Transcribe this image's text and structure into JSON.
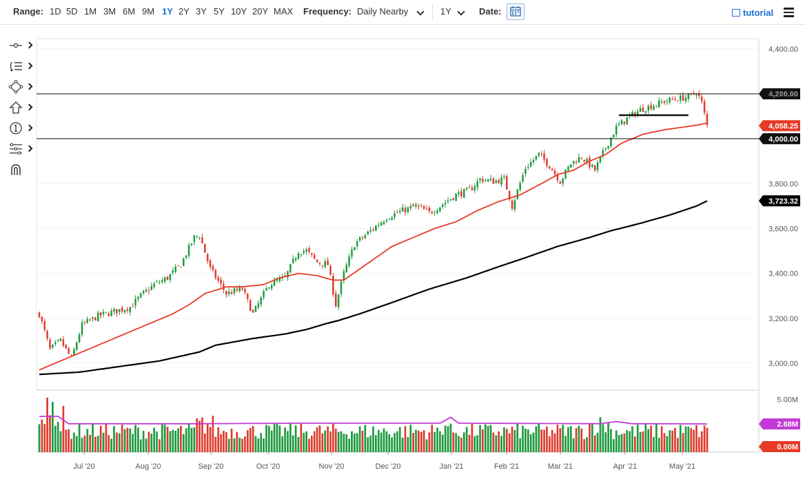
{
  "toolbar": {
    "range_label": "Range:",
    "ranges": [
      "1D",
      "5D",
      "1M",
      "3M",
      "6M",
      "9M",
      "1Y",
      "2Y",
      "3Y",
      "5Y",
      "10Y",
      "20Y",
      "MAX"
    ],
    "active_range": "1Y",
    "frequency_label": "Frequency:",
    "frequency_value": "Daily Nearby",
    "period_value": "1Y",
    "date_label": "Date:",
    "tutorial_label": "tutorial",
    "icons": {
      "date": "calendar-icon",
      "tutorial": "film-icon",
      "menu": "hamburger-menu-icon"
    }
  },
  "drawing_tools": [
    "crosshair-line-icon",
    "fibonacci-list-icon",
    "shape-move-icon",
    "arrow-up-icon",
    "numbered-circle-icon",
    "pitchfork-icon",
    "magnet-icon"
  ],
  "chart_data": {
    "type": "candlestick",
    "colors": {
      "up": "#1e9a3f",
      "down": "#e03b2d",
      "sma_fast": "#e63a26",
      "sma_slow": "#000000",
      "vol_avg": "#c23ad6"
    },
    "y_axis": {
      "range": [
        2880,
        4440
      ],
      "ticks": [
        "4,400.00",
        "4,200.00",
        "3,800.00",
        "3,600.00",
        "3,400.00",
        "3,200.00",
        "3,000.00"
      ]
    },
    "x_axis": {
      "ticks": [
        "Jul '20",
        "Aug '20",
        "Sep '20",
        "Oct '20",
        "Nov '20",
        "Dec '20",
        "Jan '21",
        "Feb '21",
        "Mar '21",
        "Apr '21",
        "May '21"
      ]
    },
    "horizontal_lines": [
      {
        "value": 4200,
        "label": "4,200.00"
      },
      {
        "value": 4000,
        "label": "4,000.00"
      }
    ],
    "price_tags": [
      {
        "value": 4058.25,
        "label": "4,058.25",
        "color": "#e63a26"
      },
      {
        "value": 3723.32,
        "label": "3,723.32",
        "color": "#000000"
      }
    ],
    "support_segment": {
      "value": 4105,
      "from_index": 217,
      "to_index": 243
    },
    "close_anchors": [
      [
        0,
        3220
      ],
      [
        4,
        3060
      ],
      [
        8,
        3100
      ],
      [
        12,
        3020
      ],
      [
        16,
        3170
      ],
      [
        22,
        3210
      ],
      [
        28,
        3230
      ],
      [
        34,
        3250
      ],
      [
        38,
        3300
      ],
      [
        43,
        3350
      ],
      [
        48,
        3380
      ],
      [
        53,
        3440
      ],
      [
        58,
        3560
      ],
      [
        60,
        3570
      ],
      [
        64,
        3420
      ],
      [
        70,
        3310
      ],
      [
        76,
        3330
      ],
      [
        80,
        3220
      ],
      [
        86,
        3350
      ],
      [
        92,
        3380
      ],
      [
        97,
        3500
      ],
      [
        100,
        3500
      ],
      [
        104,
        3450
      ],
      [
        108,
        3440
      ],
      [
        111,
        3260
      ],
      [
        114,
        3400
      ],
      [
        118,
        3530
      ],
      [
        124,
        3590
      ],
      [
        130,
        3650
      ],
      [
        136,
        3680
      ],
      [
        141,
        3700
      ],
      [
        146,
        3670
      ],
      [
        150,
        3700
      ],
      [
        156,
        3750
      ],
      [
        161,
        3770
      ],
      [
        165,
        3820
      ],
      [
        170,
        3810
      ],
      [
        174,
        3820
      ],
      [
        177,
        3700
      ],
      [
        182,
        3870
      ],
      [
        187,
        3930
      ],
      [
        191,
        3880
      ],
      [
        195,
        3810
      ],
      [
        199,
        3890
      ],
      [
        203,
        3920
      ],
      [
        208,
        3860
      ],
      [
        212,
        3960
      ],
      [
        216,
        4050
      ],
      [
        220,
        4090
      ],
      [
        225,
        4130
      ],
      [
        230,
        4150
      ],
      [
        235,
        4170
      ],
      [
        240,
        4180
      ],
      [
        244,
        4190
      ],
      [
        246,
        4210
      ],
      [
        248,
        4160
      ],
      [
        250,
        4058
      ]
    ],
    "sma_fast_anchors": [
      [
        0,
        2970
      ],
      [
        10,
        3020
      ],
      [
        20,
        3070
      ],
      [
        30,
        3120
      ],
      [
        40,
        3170
      ],
      [
        50,
        3220
      ],
      [
        56,
        3260
      ],
      [
        62,
        3310
      ],
      [
        70,
        3340
      ],
      [
        76,
        3340
      ],
      [
        84,
        3350
      ],
      [
        90,
        3380
      ],
      [
        97,
        3400
      ],
      [
        104,
        3390
      ],
      [
        110,
        3370
      ],
      [
        114,
        3370
      ],
      [
        120,
        3420
      ],
      [
        126,
        3470
      ],
      [
        132,
        3520
      ],
      [
        140,
        3560
      ],
      [
        148,
        3600
      ],
      [
        156,
        3630
      ],
      [
        164,
        3680
      ],
      [
        172,
        3720
      ],
      [
        180,
        3750
      ],
      [
        188,
        3800
      ],
      [
        194,
        3840
      ],
      [
        200,
        3860
      ],
      [
        206,
        3900
      ],
      [
        212,
        3930
      ],
      [
        218,
        3980
      ],
      [
        226,
        4020
      ],
      [
        234,
        4040
      ],
      [
        240,
        4050
      ],
      [
        246,
        4060
      ],
      [
        250,
        4070
      ]
    ],
    "sma_slow_anchors": [
      [
        0,
        2950
      ],
      [
        15,
        2960
      ],
      [
        30,
        2985
      ],
      [
        45,
        3010
      ],
      [
        60,
        3050
      ],
      [
        66,
        3080
      ],
      [
        80,
        3110
      ],
      [
        92,
        3130
      ],
      [
        100,
        3150
      ],
      [
        107,
        3175
      ],
      [
        112,
        3190
      ],
      [
        120,
        3220
      ],
      [
        132,
        3270
      ],
      [
        146,
        3330
      ],
      [
        160,
        3380
      ],
      [
        172,
        3430
      ],
      [
        182,
        3470
      ],
      [
        194,
        3520
      ],
      [
        206,
        3560
      ],
      [
        214,
        3590
      ],
      [
        224,
        3620
      ],
      [
        236,
        3660
      ],
      [
        246,
        3700
      ],
      [
        250,
        3723
      ]
    ],
    "volume": {
      "axis_ticks": [
        "5.00M"
      ],
      "tags": [
        {
          "value": 2.68,
          "label": "2.68M",
          "color": "#c23ad6"
        },
        {
          "value": 0.0,
          "label": "0.00M",
          "color": "#e63a26"
        }
      ],
      "max": 5.5,
      "avg_anchors": [
        [
          0,
          3.4
        ],
        [
          7,
          3.4
        ],
        [
          11,
          2.7
        ],
        [
          60,
          2.7
        ],
        [
          96,
          2.75
        ],
        [
          150,
          2.75
        ],
        [
          154,
          3.3
        ],
        [
          157,
          2.75
        ],
        [
          210,
          2.7
        ],
        [
          216,
          2.9
        ],
        [
          222,
          2.7
        ],
        [
          250,
          2.68
        ]
      ],
      "base_level": 2.2
    },
    "n_bars": 251
  }
}
